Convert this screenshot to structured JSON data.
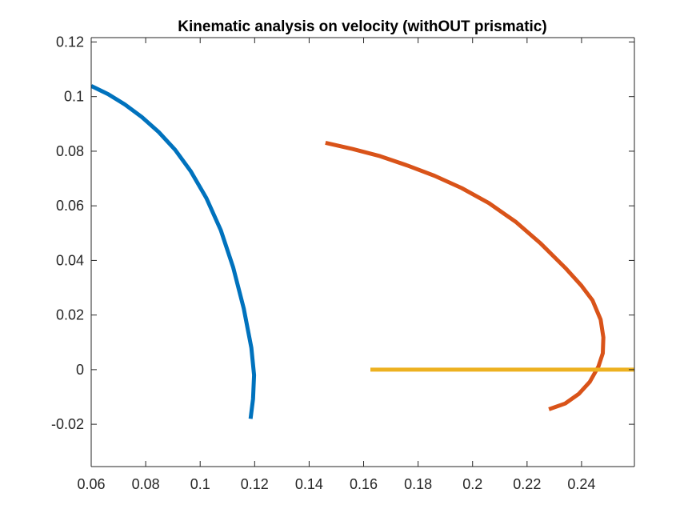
{
  "chart_data": {
    "type": "line",
    "title": "Kinematic analysis on velocity (withOUT prismatic)",
    "xlabel": "",
    "ylabel": "",
    "xlim": [
      0.06,
      0.2594
    ],
    "ylim": [
      -0.0355,
      0.1216
    ],
    "grid": false,
    "legend": "none",
    "x_ticks": [
      0.06,
      0.08,
      0.1,
      0.12,
      0.14,
      0.16,
      0.18,
      0.2,
      0.22,
      0.24
    ],
    "x_tick_labels": [
      "0.06",
      "0.08",
      "0.1",
      "0.12",
      "0.14",
      "0.16",
      "0.18",
      "0.2",
      "0.22",
      "0.24"
    ],
    "y_ticks": [
      -0.02,
      0,
      0.02,
      0.04,
      0.06,
      0.08,
      0.1,
      0.12
    ],
    "y_tick_labels": [
      "-0.02",
      "0",
      "0.02",
      "0.04",
      "0.06",
      "0.08",
      "0.1",
      "0.12"
    ],
    "series": [
      {
        "color": "#0072BD",
        "points": [
          [
            0.06,
            0.1039
          ],
          [
            0.0662,
            0.1009
          ],
          [
            0.0724,
            0.0971
          ],
          [
            0.0786,
            0.0925
          ],
          [
            0.0848,
            0.087
          ],
          [
            0.0908,
            0.0805
          ],
          [
            0.0966,
            0.0726
          ],
          [
            0.1023,
            0.0628
          ],
          [
            0.1076,
            0.051
          ],
          [
            0.1121,
            0.0375
          ],
          [
            0.116,
            0.0224
          ],
          [
            0.1188,
            0.008
          ],
          [
            0.1198,
            -0.002
          ],
          [
            0.1194,
            -0.0107
          ],
          [
            0.1185,
            -0.018
          ]
        ]
      },
      {
        "color": "#D95319",
        "points": [
          [
            0.146,
            0.0831
          ],
          [
            0.156,
            0.0808
          ],
          [
            0.166,
            0.0782
          ],
          [
            0.176,
            0.0748
          ],
          [
            0.186,
            0.071
          ],
          [
            0.196,
            0.0665
          ],
          [
            0.206,
            0.061
          ],
          [
            0.216,
            0.054
          ],
          [
            0.225,
            0.0462
          ],
          [
            0.234,
            0.0373
          ],
          [
            0.24,
            0.0307
          ],
          [
            0.244,
            0.0254
          ],
          [
            0.247,
            0.0183
          ],
          [
            0.248,
            0.0118
          ],
          [
            0.2478,
            0.006
          ],
          [
            0.2462,
            0.0012
          ],
          [
            0.243,
            -0.0045
          ],
          [
            0.239,
            -0.0089
          ],
          [
            0.234,
            -0.0124
          ],
          [
            0.228,
            -0.0145
          ]
        ]
      },
      {
        "color": "#EDB120",
        "points": [
          [
            0.1625,
            0.0
          ],
          [
            0.2594,
            0.0
          ]
        ]
      }
    ]
  }
}
